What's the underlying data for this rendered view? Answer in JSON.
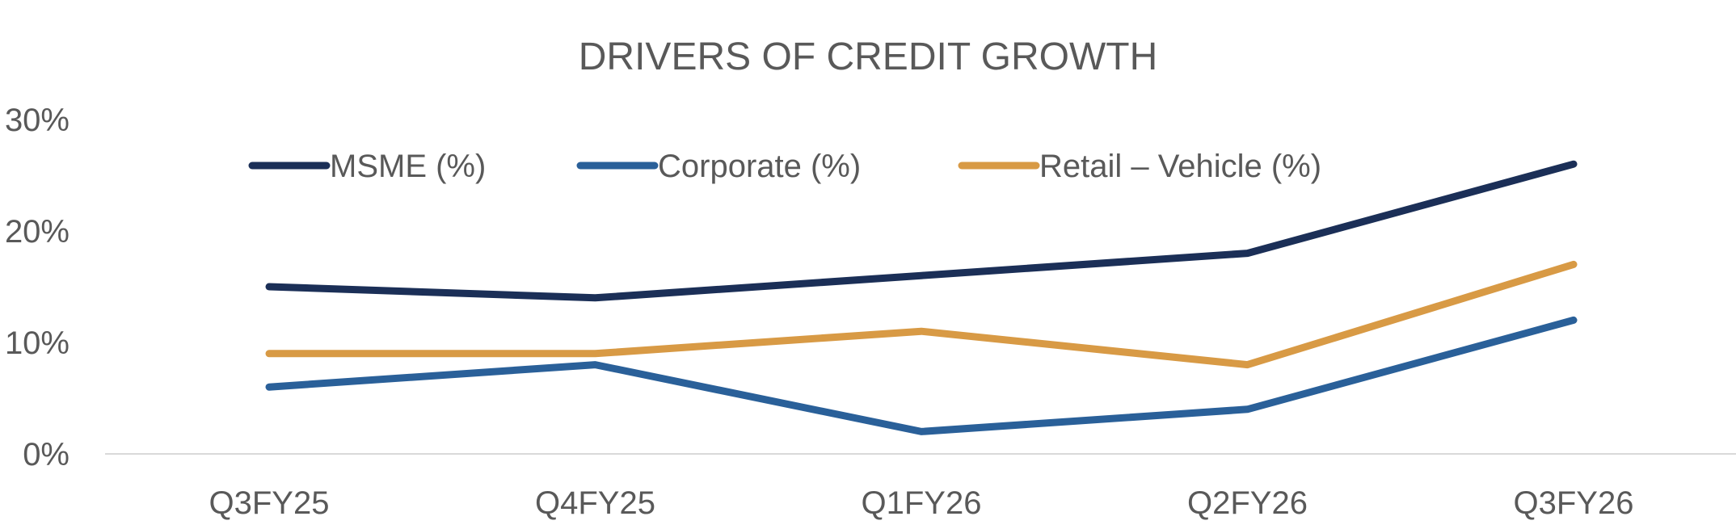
{
  "chart_data": {
    "type": "line",
    "title": "DRIVERS OF CREDIT GROWTH",
    "categories": [
      "Q3FY25",
      "Q4FY25",
      "Q1FY26",
      "Q2FY26",
      "Q3FY26"
    ],
    "series": [
      {
        "name": "MSME (%)",
        "values": [
          15,
          14,
          16,
          18,
          26
        ],
        "color": "#1b2f57"
      },
      {
        "name": "Corporate (%)",
        "values": [
          6,
          8,
          2,
          4,
          12
        ],
        "color": "#2a6099"
      },
      {
        "name": "Retail – Vehicle (%)",
        "values": [
          9,
          9,
          11,
          8,
          17
        ],
        "color": "#d89a45"
      }
    ],
    "ylim": [
      0,
      30
    ],
    "yticks": [
      "0%",
      "10%",
      "20%",
      "30%"
    ],
    "ytick_values": [
      0,
      10,
      20,
      30
    ],
    "grid": false,
    "legend_position": "top",
    "axis_color": "#d9d9d9"
  }
}
